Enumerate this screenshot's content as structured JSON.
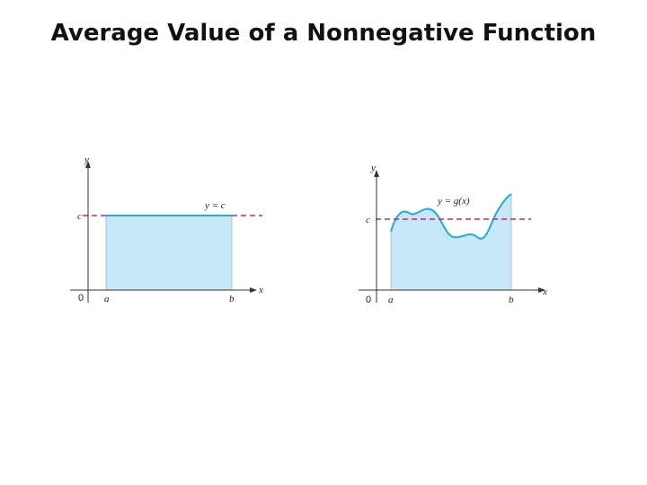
{
  "title": "Average Value of a Nonnegative Function",
  "figure_left": {
    "curve_label": "y = c",
    "c_label": "c",
    "y_axis_label": "y",
    "x_axis_label": "x",
    "origin_label": "0",
    "a_label": "a",
    "b_label": "b"
  },
  "figure_right": {
    "curve_label": "y = g(x)",
    "c_label": "c",
    "y_axis_label": "y",
    "x_axis_label": "x",
    "origin_label": "0",
    "a_label": "a",
    "b_label": "b"
  },
  "colors": {
    "fill": "#c7e7f7",
    "curve": "#2aa9cf",
    "dashed_line": "#c0287a",
    "axis": "#333333"
  }
}
